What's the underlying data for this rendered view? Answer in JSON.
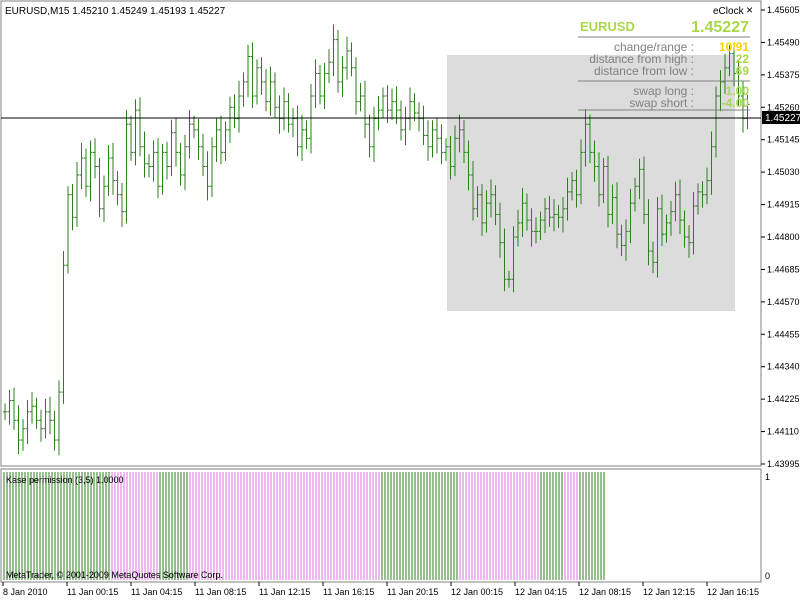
{
  "header": {
    "symbol_info": "EURUSD,M15  1.45210 1.45249 1.45193 1.45227",
    "eclock_label": "eClock",
    "close_glyph": "×"
  },
  "price_axis": {
    "ticks": [
      "1.45605",
      "1.45490",
      "1.45375",
      "1.45260",
      "1.45145",
      "1.45030",
      "1.44915",
      "1.44800",
      "1.44685",
      "1.44570",
      "1.44455",
      "1.44340",
      "1.44225",
      "1.44110",
      "1.43995"
    ],
    "current_price": "1.45227",
    "min": 1.43995,
    "max": 1.45605
  },
  "info_panel": {
    "symbol": "EURUSD",
    "price": "1.45227",
    "rows": [
      {
        "label": "change/range :",
        "value": "10/91",
        "color": "#ffd200"
      },
      {
        "label": "distance from high :",
        "value": "22",
        "color": "#a8d84a"
      },
      {
        "label": "distance from low :",
        "value": "69",
        "color": "#a8d84a"
      },
      {
        "label": "swap long :",
        "value": "1.00",
        "color": "#a8d84a"
      },
      {
        "label": "swap short :",
        "value": "-4.00",
        "color": "#a8d84a"
      }
    ]
  },
  "indicator": {
    "label": "Kase permission (3,5) 1.0000",
    "axis_top": "1",
    "axis_bottom": "0",
    "colors": {
      "up": "#2e7d1f",
      "down": "#e070e0"
    },
    "segments": [
      {
        "color": "up",
        "count": 36
      },
      {
        "color": "down",
        "count": 16
      },
      {
        "color": "up",
        "count": 10
      },
      {
        "color": "down",
        "count": 64
      },
      {
        "color": "up",
        "count": 26
      },
      {
        "color": "down",
        "count": 27
      },
      {
        "color": "up",
        "count": 8
      },
      {
        "color": "down",
        "count": 5
      },
      {
        "color": "up",
        "count": 9
      }
    ]
  },
  "time_axis": {
    "labels": [
      "8 Jan 2010",
      "11 Jan 00:15",
      "11 Jan 04:15",
      "11 Jan 08:15",
      "11 Jan 12:15",
      "11 Jan 16:15",
      "11 Jan 20:15",
      "12 Jan 00:15",
      "12 Jan 04:15",
      "12 Jan 08:15",
      "12 Jan 12:15",
      "12 Jan 16:15"
    ]
  },
  "copyright": "MetaTrader, © 2001-2009 MetaQuotes Software Corp.",
  "colors": {
    "bar": "#2e7d1f",
    "selection": "#dcdcdc",
    "panel_title": "#a8d84a",
    "panel_label": "#808080",
    "price_line": "#000000"
  },
  "chart_data": {
    "type": "ohlc",
    "series_close": [
      1.4418,
      1.4422,
      1.4415,
      1.4408,
      1.4412,
      1.4418,
      1.442,
      1.4415,
      1.4412,
      1.4418,
      1.4415,
      1.4408,
      1.4425,
      1.447,
      1.4495,
      1.4487,
      1.4502,
      1.4508,
      1.4498,
      1.451,
      1.4505,
      1.449,
      1.4498,
      1.4508,
      1.45,
      1.4495,
      1.4489,
      1.452,
      1.451,
      1.4525,
      1.4512,
      1.4506,
      1.4505,
      1.451,
      1.4498,
      1.451,
      1.4505,
      1.4517,
      1.451,
      1.4502,
      1.4512,
      1.452,
      1.4518,
      1.4512,
      1.4505,
      1.4498,
      1.4512,
      1.4518,
      1.451,
      1.4518,
      1.4526,
      1.4522,
      1.453,
      1.4535,
      1.4544,
      1.453,
      1.454,
      1.4535,
      1.4528,
      1.4535,
      1.4526,
      1.4522,
      1.4528,
      1.452,
      1.4522,
      1.4512,
      1.4518,
      1.4515,
      1.453,
      1.4538,
      1.453,
      1.4538,
      1.4542,
      1.455,
      1.4535,
      1.454,
      1.4546,
      1.454,
      1.4528,
      1.453,
      1.452,
      1.4512,
      1.4522,
      1.4525,
      1.453,
      1.4525,
      1.4528,
      1.4525,
      1.4518,
      1.4522,
      1.4528,
      1.4524,
      1.4522,
      1.4516,
      1.4512,
      1.4518,
      1.4515,
      1.451,
      1.4512,
      1.4505,
      1.4515,
      1.4518,
      1.451,
      1.4502,
      1.449,
      1.4495,
      1.4485,
      1.4492,
      1.4495,
      1.4488,
      1.4478,
      1.4465,
      1.4465,
      1.448,
      1.4485,
      1.4492,
      1.4486,
      1.4482,
      1.4482,
      1.4486,
      1.449,
      1.4487,
      1.4488,
      1.4487,
      1.449,
      1.4496,
      1.45,
      1.4495,
      1.451,
      1.452,
      1.451,
      1.4505,
      1.4495,
      1.4505,
      1.4488,
      1.4494,
      1.4481,
      1.4477,
      1.4482,
      1.4492,
      1.4498,
      1.4504,
      1.4488,
      1.4475,
      1.4471,
      1.449,
      1.4481,
      1.4485,
      1.4489,
      1.4495,
      1.4486,
      1.448,
      1.4478,
      1.4491,
      1.4496,
      1.4495,
      1.45,
      1.4512,
      1.453,
      1.4535,
      1.454,
      1.4545,
      1.4538,
      1.453,
      1.4522,
      1.4527
    ]
  }
}
